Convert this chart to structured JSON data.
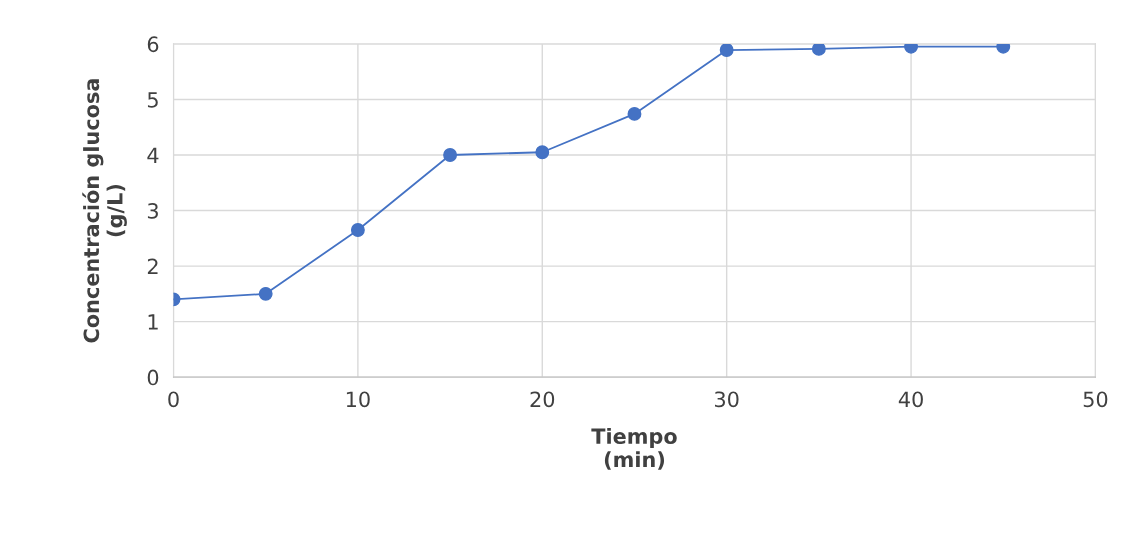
{
  "chart_data": {
    "type": "line",
    "xlabel": "Tiempo\n(min)",
    "ylabel": "Concentración glucosa\n(g/L)",
    "x": [
      0,
      5,
      10,
      15,
      20,
      25,
      30,
      35,
      40,
      45
    ],
    "series": [
      {
        "color": "#4472c4",
        "values": [
          1.4,
          1.5,
          2.65,
          4.0,
          4.05,
          4.74,
          5.89,
          5.91,
          5.95,
          5.95
        ]
      }
    ],
    "xlim": [
      0,
      50
    ],
    "xticks": [
      0,
      10,
      20,
      30,
      40,
      50
    ],
    "ylim": [
      0,
      6
    ],
    "yticks": [
      0,
      1,
      2,
      3,
      4,
      5,
      6
    ],
    "grid": true,
    "marker": "circle",
    "line_style": "solid"
  }
}
